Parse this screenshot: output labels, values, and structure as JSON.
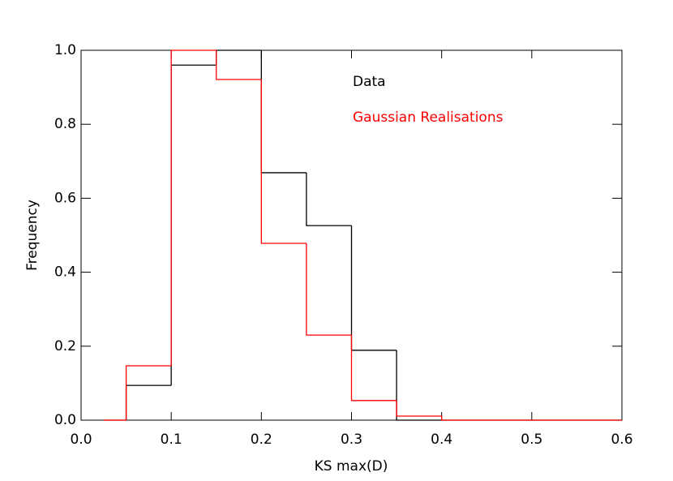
{
  "chart_data": {
    "type": "histogram",
    "xlabel": "KS max(D)",
    "ylabel": "Frequency",
    "bins": [
      0.025,
      0.05,
      0.1,
      0.15,
      0.2,
      0.25,
      0.3,
      0.35,
      0.4,
      0.45,
      0.5,
      0.55,
      0.6
    ],
    "series": [
      {
        "name": "Data",
        "color": "#000000",
        "values": [
          0,
          0.094,
          0.96,
          1.0,
          0.669,
          0.526,
          0.189,
          0,
          0,
          0,
          0,
          0
        ]
      },
      {
        "name": "Gaussian Realisations",
        "color": "#ff0000",
        "values": [
          0,
          0.147,
          1.0,
          0.921,
          0.478,
          0.23,
          0.053,
          0.011,
          0,
          0,
          0,
          0
        ]
      }
    ],
    "xlim": [
      0,
      0.6
    ],
    "xticks": [
      {
        "value": 0,
        "label": "0.0"
      },
      0.1,
      0.2,
      0.3,
      0.4,
      0.5,
      0.6
    ],
    "ylim": [
      0,
      1
    ],
    "yticks": [
      {
        "value": 0,
        "label": "0.0"
      },
      0.2,
      0.4,
      0.6,
      0.8,
      {
        "value": 1,
        "label": "1.0"
      }
    ],
    "legend": "upper right"
  }
}
